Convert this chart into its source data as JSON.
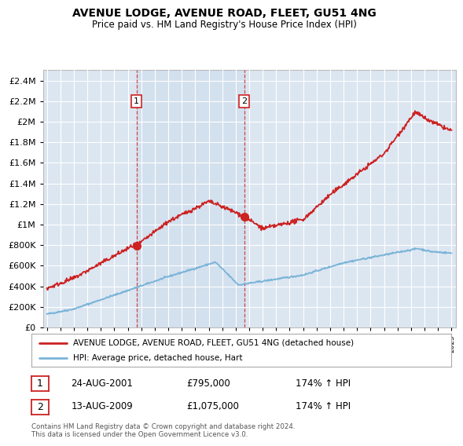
{
  "title": "AVENUE LODGE, AVENUE ROAD, FLEET, GU51 4NG",
  "subtitle": "Price paid vs. HM Land Registry's House Price Index (HPI)",
  "legend_entry1": "AVENUE LODGE, AVENUE ROAD, FLEET, GU51 4NG (detached house)",
  "legend_entry2": "HPI: Average price, detached house, Hart",
  "transaction1_date": "24-AUG-2001",
  "transaction1_price": "£795,000",
  "transaction1_hpi": "174% ↑ HPI",
  "transaction2_date": "13-AUG-2009",
  "transaction2_price": "£1,075,000",
  "transaction2_hpi": "174% ↑ HPI",
  "footer": "Contains HM Land Registry data © Crown copyright and database right 2024.\nThis data is licensed under the Open Government Licence v3.0.",
  "hpi_color": "#7ab4d8",
  "price_color": "#cc2222",
  "vline_color": "#cc2222",
  "shade_color": "#cddcec",
  "bg_color": "#dce6f1",
  "marker1_date": 2001.65,
  "marker2_date": 2009.62,
  "marker1_price": 795000,
  "marker2_price": 1075000,
  "vline1_date": 2001.65,
  "vline2_date": 2009.62,
  "ylim_min": 0,
  "ylim_max": 2500000,
  "xmin": 1995,
  "xmax": 2025
}
